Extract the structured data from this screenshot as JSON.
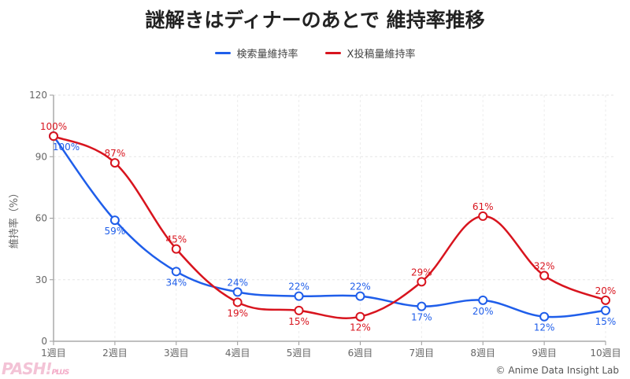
{
  "chart_data": {
    "type": "line",
    "title": "謎解きはディナーのあとで 維持率推移",
    "xlabel": "",
    "ylabel": "維持率（%）",
    "categories": [
      "1週目",
      "2週目",
      "3週目",
      "4週目",
      "5週目",
      "6週目",
      "7週目",
      "8週目",
      "9週目",
      "10週目"
    ],
    "ylim": [
      0,
      120
    ],
    "yticks": [
      0,
      30,
      60,
      90,
      120
    ],
    "grid": true,
    "legend_position": "top-center",
    "series": [
      {
        "name": "検索量維持率",
        "color": "#1f5eea",
        "values": [
          100,
          59,
          34,
          24,
          22,
          22,
          17,
          20,
          12,
          15
        ]
      },
      {
        "name": "X投稿量維持率",
        "color": "#d8141e",
        "values": [
          100,
          87,
          45,
          19,
          15,
          12,
          29,
          61,
          32,
          20
        ]
      }
    ]
  },
  "credit": "© Anime Data Insight Lab",
  "logo": {
    "main": "PASH!",
    "sub": "PLUS"
  }
}
